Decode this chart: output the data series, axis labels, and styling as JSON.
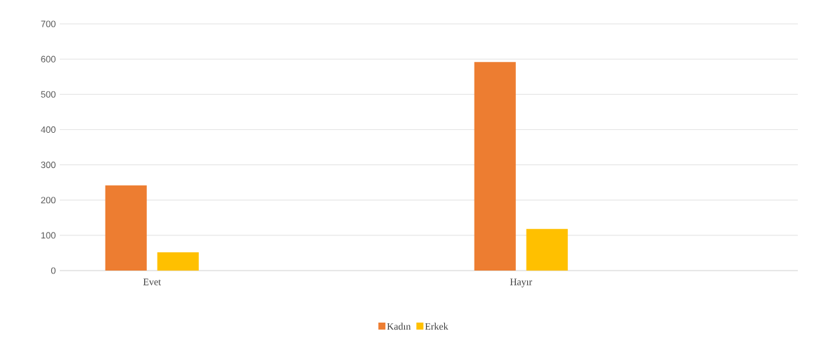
{
  "chart_data": {
    "type": "bar",
    "categories": [
      "Evet",
      null,
      "Hayır",
      null
    ],
    "series": [
      {
        "name": "Kadın",
        "color": "#ed7d31",
        "values": [
          242,
          null,
          592,
          null
        ]
      },
      {
        "name": "Erkek",
        "color": "#ffc000",
        "values": [
          52,
          null,
          118,
          null
        ]
      }
    ],
    "ylim": [
      0,
      700
    ],
    "yticks": [
      0,
      100,
      200,
      300,
      400,
      500,
      600,
      700
    ],
    "grid": "y",
    "legend": "bottom"
  }
}
